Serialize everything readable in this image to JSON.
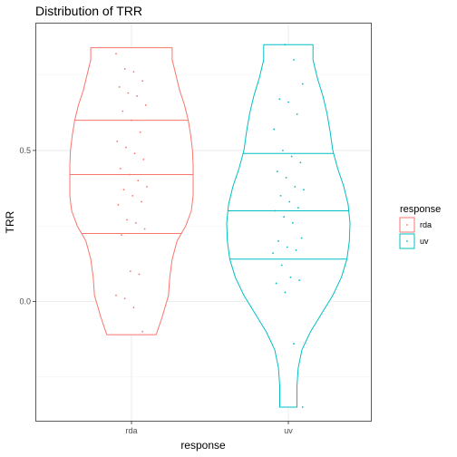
{
  "chart_data": {
    "type": "violin",
    "title": "Distribution of TRR",
    "xlabel": "response",
    "ylabel": "TRR",
    "categories": [
      "rda",
      "uv"
    ],
    "y_ticks": [
      0.0,
      0.5
    ],
    "y_tick_labels": [
      "0.0",
      "0.5"
    ],
    "ylim": [
      -0.395,
      0.92
    ],
    "grid": true,
    "legend": {
      "title": "response",
      "placement": "right",
      "entries": [
        "rda",
        "uv"
      ]
    },
    "series": [
      {
        "name": "rda",
        "color": "#F8766D",
        "min": -0.11,
        "max": 0.84,
        "quantiles": [
          0.225,
          0.42,
          0.6
        ],
        "density": [
          [
            -0.11,
            0.4
          ],
          [
            -0.05,
            0.5
          ],
          [
            0.02,
            0.6
          ],
          [
            0.08,
            0.62
          ],
          [
            0.14,
            0.66
          ],
          [
            0.2,
            0.74
          ],
          [
            0.25,
            0.88
          ],
          [
            0.3,
            0.97
          ],
          [
            0.35,
            1.0
          ],
          [
            0.4,
            1.0
          ],
          [
            0.45,
            1.0
          ],
          [
            0.5,
            0.99
          ],
          [
            0.55,
            0.96
          ],
          [
            0.6,
            0.92
          ],
          [
            0.65,
            0.86
          ],
          [
            0.7,
            0.78
          ],
          [
            0.75,
            0.72
          ],
          [
            0.8,
            0.66
          ],
          [
            0.84,
            0.66
          ]
        ],
        "points": [
          0.82,
          0.77,
          0.76,
          0.73,
          0.71,
          0.69,
          0.68,
          0.65,
          0.63,
          0.6,
          0.56,
          0.53,
          0.51,
          0.49,
          0.47,
          0.44,
          0.42,
          0.4,
          0.38,
          0.37,
          0.35,
          0.33,
          0.32,
          0.27,
          0.26,
          0.24,
          0.22,
          0.1,
          0.09,
          0.02,
          0.01,
          -0.02,
          -0.1
        ]
      },
      {
        "name": "uv",
        "color": "#00BFC4",
        "min": -0.35,
        "max": 0.85,
        "quantiles": [
          0.14,
          0.3,
          0.49
        ],
        "density": [
          [
            -0.35,
            0.14
          ],
          [
            -0.28,
            0.14
          ],
          [
            -0.22,
            0.16
          ],
          [
            -0.16,
            0.22
          ],
          [
            -0.1,
            0.36
          ],
          [
            -0.04,
            0.54
          ],
          [
            0.02,
            0.72
          ],
          [
            0.08,
            0.86
          ],
          [
            0.14,
            0.95
          ],
          [
            0.2,
            0.99
          ],
          [
            0.26,
            1.0
          ],
          [
            0.32,
            0.97
          ],
          [
            0.38,
            0.9
          ],
          [
            0.44,
            0.8
          ],
          [
            0.5,
            0.72
          ],
          [
            0.56,
            0.68
          ],
          [
            0.62,
            0.63
          ],
          [
            0.68,
            0.56
          ],
          [
            0.74,
            0.47
          ],
          [
            0.8,
            0.4
          ],
          [
            0.85,
            0.4
          ]
        ],
        "points": [
          0.85,
          0.8,
          0.72,
          0.67,
          0.66,
          0.62,
          0.57,
          0.5,
          0.48,
          0.46,
          0.43,
          0.41,
          0.38,
          0.37,
          0.35,
          0.33,
          0.31,
          0.3,
          0.28,
          0.26,
          0.21,
          0.2,
          0.18,
          0.17,
          0.16,
          0.12,
          0.08,
          0.07,
          0.06,
          0.03,
          -0.14,
          -0.35
        ]
      }
    ]
  }
}
